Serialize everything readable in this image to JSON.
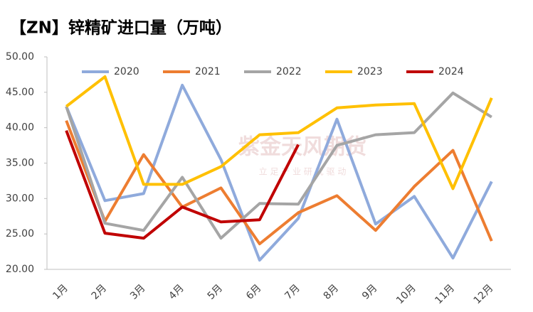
{
  "chart_data": {
    "type": "line",
    "title": "【ZN】锌精矿进口量（万吨）",
    "watermark": "紫金天风期货",
    "watermark_subtitle": "立 足 产 业   研 究 驱 动",
    "categories": [
      "1月",
      "2月",
      "3月",
      "4月",
      "5月",
      "6月",
      "7月",
      "8月",
      "9月",
      "10月",
      "11月",
      "12月"
    ],
    "series": [
      {
        "name": "2020",
        "color": "#8faadc",
        "values": [
          43.0,
          29.7,
          30.7,
          46.0,
          35.5,
          21.3,
          27.2,
          41.2,
          26.4,
          30.3,
          21.6,
          32.4
        ]
      },
      {
        "name": "2021",
        "color": "#ed7d31",
        "values": [
          41.0,
          26.8,
          36.2,
          28.8,
          31.5,
          23.6,
          28.0,
          30.4,
          25.5,
          31.7,
          36.8,
          24.0
        ]
      },
      {
        "name": "2022",
        "color": "#a5a5a5",
        "values": [
          43.0,
          26.5,
          25.5,
          33.0,
          24.4,
          29.3,
          29.2,
          37.5,
          39.0,
          39.3,
          44.9,
          41.5
        ]
      },
      {
        "name": "2023",
        "color": "#ffc000",
        "values": [
          43.0,
          47.2,
          32.0,
          32.0,
          34.5,
          39.0,
          39.3,
          42.8,
          43.2,
          43.4,
          31.4,
          44.2
        ]
      },
      {
        "name": "2024",
        "color": "#c00000",
        "values": [
          39.6,
          25.1,
          24.4,
          28.8,
          26.7,
          27.0,
          37.6,
          null,
          null,
          null,
          null,
          null
        ]
      }
    ],
    "ylim": [
      20,
      50
    ],
    "yticks": [
      {
        "value": 20,
        "label": "20.00"
      },
      {
        "value": 25,
        "label": "25.00"
      },
      {
        "value": 30,
        "label": "30.00"
      },
      {
        "value": 35,
        "label": "35.00"
      },
      {
        "value": 40,
        "label": "40.00"
      },
      {
        "value": 45,
        "label": "45.00"
      },
      {
        "value": 50,
        "label": "50.00"
      }
    ],
    "grid": false,
    "legend": "top"
  }
}
